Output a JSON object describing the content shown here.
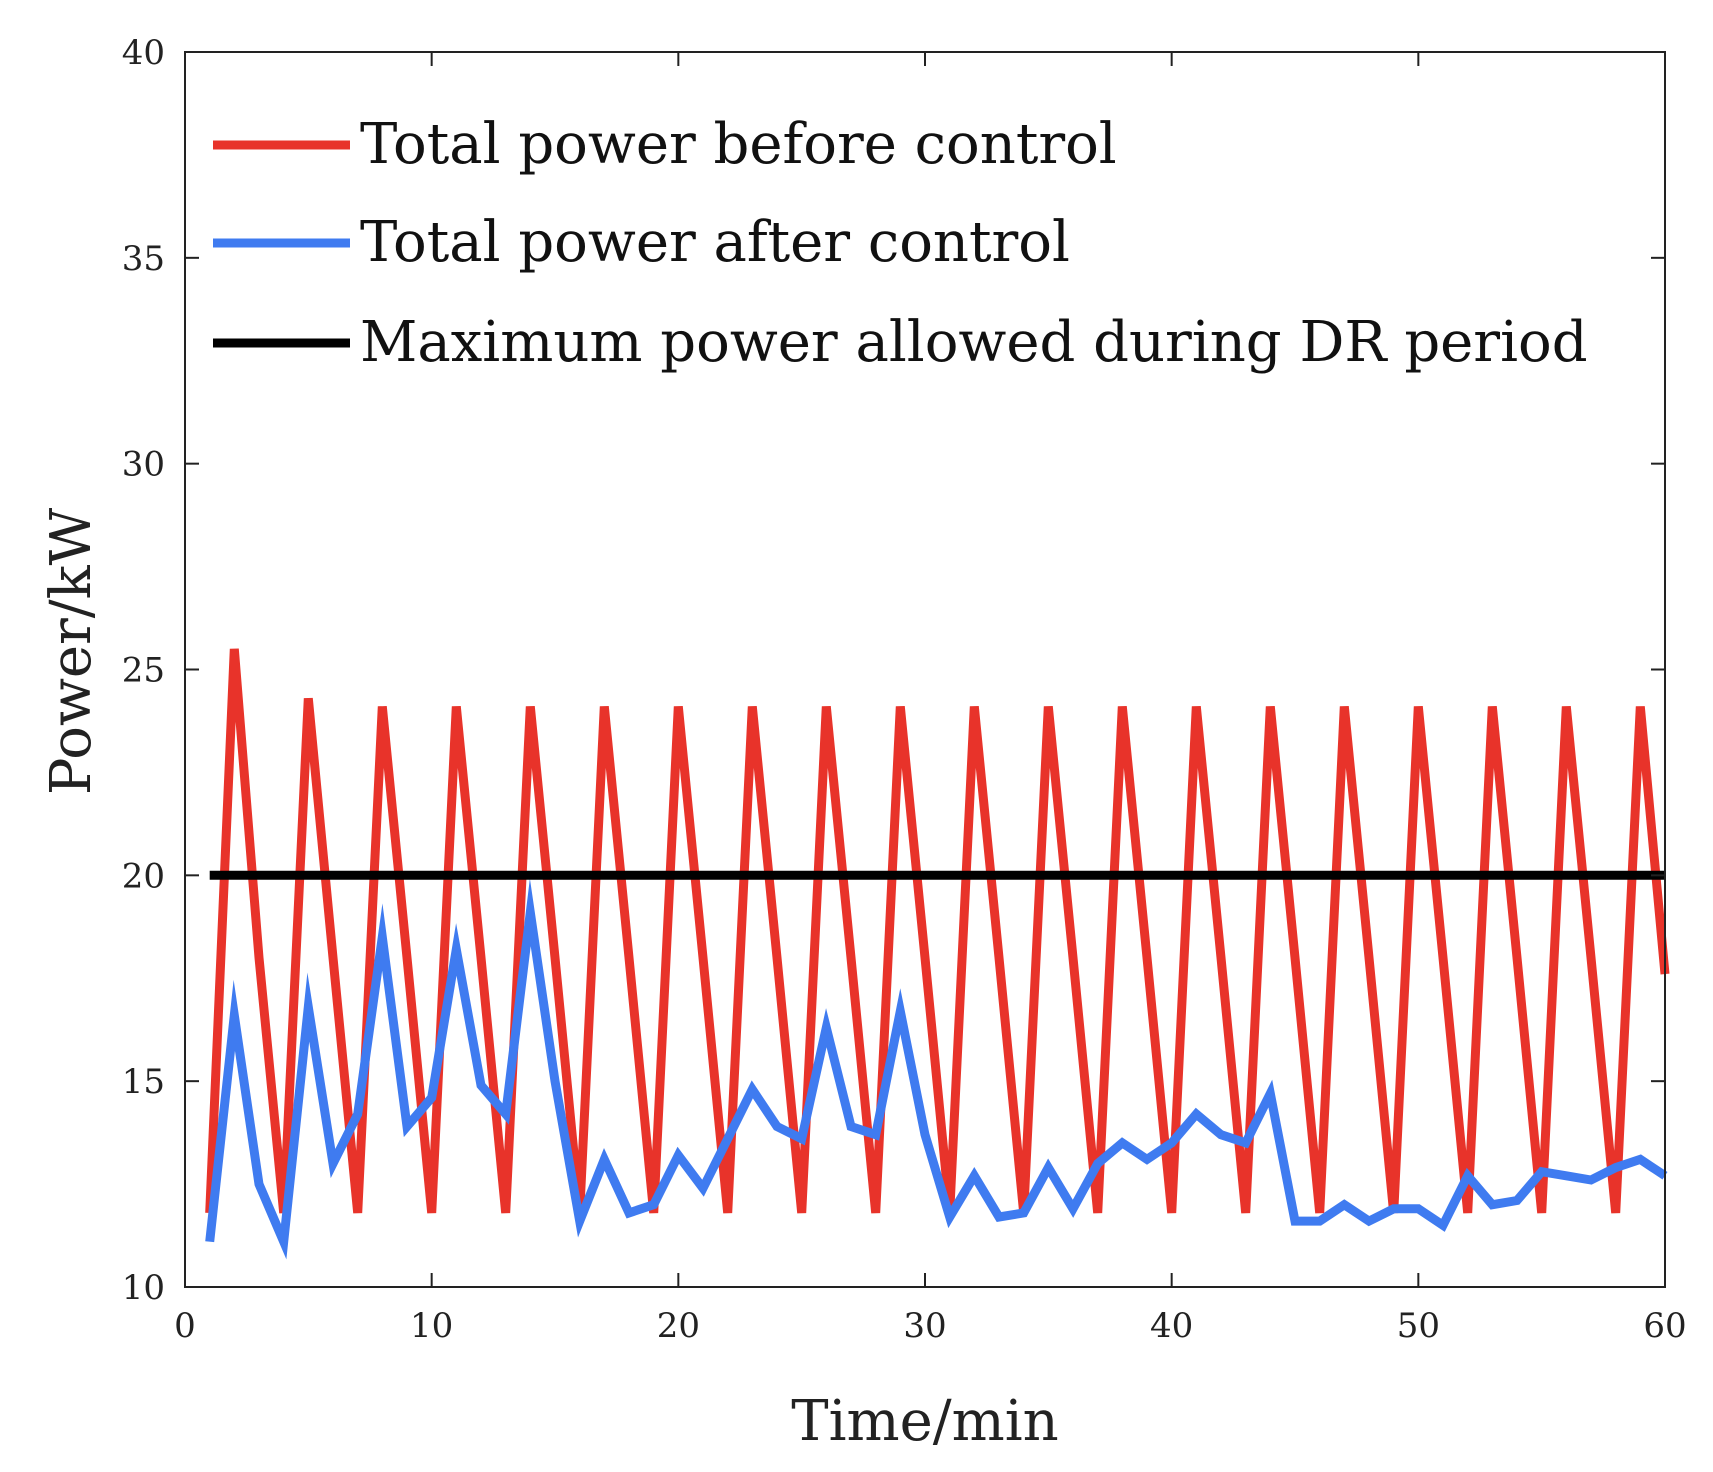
{
  "chart_data": {
    "type": "line",
    "xlabel": "Time/min",
    "ylabel": "Power/kW",
    "xlim": [
      0,
      60
    ],
    "ylim": [
      10,
      40
    ],
    "xticks": [
      0,
      10,
      20,
      30,
      40,
      50,
      60
    ],
    "yticks": [
      10,
      15,
      20,
      25,
      30,
      35,
      40
    ],
    "grid": false,
    "legend_position": "top-left",
    "x": [
      1,
      2,
      3,
      4,
      5,
      6,
      7,
      8,
      9,
      10,
      11,
      12,
      13,
      14,
      15,
      16,
      17,
      18,
      19,
      20,
      21,
      22,
      23,
      24,
      25,
      26,
      27,
      28,
      29,
      30,
      31,
      32,
      33,
      34,
      35,
      36,
      37,
      38,
      39,
      40,
      41,
      42,
      43,
      44,
      45,
      46,
      47,
      48,
      49,
      50,
      51,
      52,
      53,
      54,
      55,
      56,
      57,
      58,
      59,
      60
    ],
    "series": [
      {
        "name": "Total power before control",
        "color": "#e8332a",
        "values": [
          11.8,
          25.5,
          18.0,
          11.8,
          24.3,
          18.0,
          11.8,
          24.1,
          18.0,
          11.8,
          24.1,
          18.0,
          11.8,
          24.1,
          18.0,
          11.8,
          24.1,
          18.0,
          11.8,
          24.1,
          18.0,
          11.8,
          24.1,
          18.0,
          11.8,
          24.1,
          18.0,
          11.8,
          24.1,
          18.0,
          11.8,
          24.1,
          18.0,
          11.8,
          24.1,
          18.0,
          11.8,
          24.1,
          18.0,
          11.8,
          24.1,
          18.0,
          11.8,
          24.1,
          18.0,
          11.8,
          24.1,
          18.0,
          11.8,
          24.1,
          18.0,
          11.8,
          24.1,
          18.0,
          11.8,
          24.1,
          18.0,
          11.8,
          24.1,
          17.6
        ]
      },
      {
        "name": "Total power after control",
        "color": "#3f7bf0",
        "values": [
          11.1,
          16.6,
          12.5,
          11.1,
          16.8,
          13.0,
          14.2,
          18.5,
          13.9,
          14.6,
          18.2,
          14.9,
          14.2,
          19.1,
          15.0,
          11.6,
          13.1,
          11.8,
          12.0,
          13.2,
          12.4,
          13.6,
          14.8,
          13.9,
          13.6,
          16.3,
          13.9,
          13.7,
          16.7,
          13.7,
          11.7,
          12.7,
          11.7,
          11.8,
          12.9,
          11.9,
          13.0,
          13.5,
          13.1,
          13.5,
          14.2,
          13.7,
          13.5,
          14.7,
          11.6,
          11.6,
          12.0,
          11.6,
          11.9,
          11.9,
          11.5,
          12.7,
          12.0,
          12.1,
          12.8,
          12.7,
          12.6,
          12.9,
          13.1,
          12.7
        ]
      },
      {
        "name": "Maximum power allowed during DR period",
        "color": "#000000",
        "values": [
          20,
          20,
          20,
          20,
          20,
          20,
          20,
          20,
          20,
          20,
          20,
          20,
          20,
          20,
          20,
          20,
          20,
          20,
          20,
          20,
          20,
          20,
          20,
          20,
          20,
          20,
          20,
          20,
          20,
          20,
          20,
          20,
          20,
          20,
          20,
          20,
          20,
          20,
          20,
          20,
          20,
          20,
          20,
          20,
          20,
          20,
          20,
          20,
          20,
          20,
          20,
          20,
          20,
          20,
          20,
          20,
          20,
          20,
          20,
          20
        ]
      }
    ]
  }
}
